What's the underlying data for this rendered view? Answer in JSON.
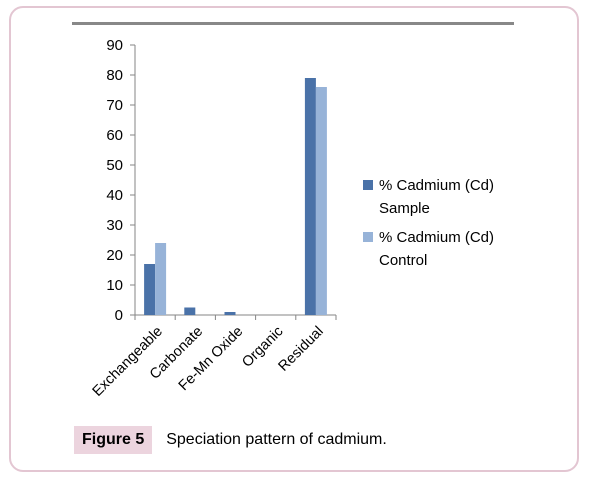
{
  "chart_data": {
    "type": "bar",
    "categories": [
      "Exchangeable",
      "Carbonate",
      "Fe-Mn Oxide",
      "Organic",
      "Residual"
    ],
    "series": [
      {
        "name": "% Cadmium (Cd) Sample",
        "legend_lines": [
          "% Cadmium (Cd)",
          "Sample"
        ],
        "values": [
          17,
          2.5,
          1,
          0,
          79
        ],
        "color": "#4a72a8"
      },
      {
        "name": "% Cadmium (Cd) Control",
        "legend_lines": [
          "% Cadmium (Cd)",
          "Control"
        ],
        "values": [
          24,
          0,
          0,
          0,
          76
        ],
        "color": "#97b3d8"
      }
    ],
    "yticks": [
      0,
      10,
      20,
      30,
      40,
      50,
      60,
      70,
      80,
      90
    ],
    "ylim": [
      0,
      90
    ],
    "legend_position": "right",
    "grid": false
  },
  "caption": {
    "label": "Figure 5",
    "text": "Speciation pattern of cadmium."
  }
}
